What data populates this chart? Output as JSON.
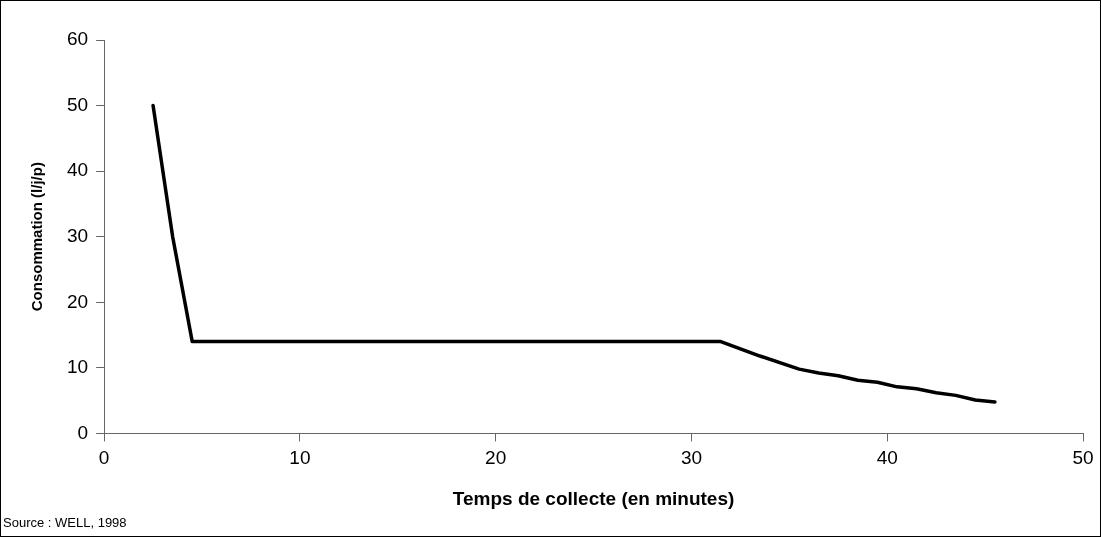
{
  "chart_data": {
    "type": "line",
    "xlabel": "Temps de collecte (en minutes)",
    "ylabel": "Consommation (l/j/p)",
    "x": [
      2.5,
      3.5,
      4.5,
      31.5,
      33.5,
      35.5,
      36.5,
      37.5,
      38.5,
      39.5,
      40.5,
      41.5,
      42.5,
      43.5,
      44.5,
      45.5
    ],
    "series": [
      {
        "color": "#000000",
        "values": [
          50,
          30,
          14,
          14,
          11.8,
          9.8,
          9.2,
          8.8,
          8.1,
          7.8,
          7.1,
          6.8,
          6.2,
          5.8,
          5.1,
          4.8
        ]
      }
    ],
    "xlim": [
      0,
      50
    ],
    "xticks": [
      0,
      10,
      20,
      30,
      40,
      50
    ],
    "ylim": [
      0,
      60
    ],
    "yticks": [
      0,
      10,
      20,
      30,
      40,
      50,
      60
    ],
    "grid": false,
    "legend": false,
    "marker": "none",
    "line_style": "solid",
    "annotations": [
      "Source : WELL, 1998"
    ]
  }
}
